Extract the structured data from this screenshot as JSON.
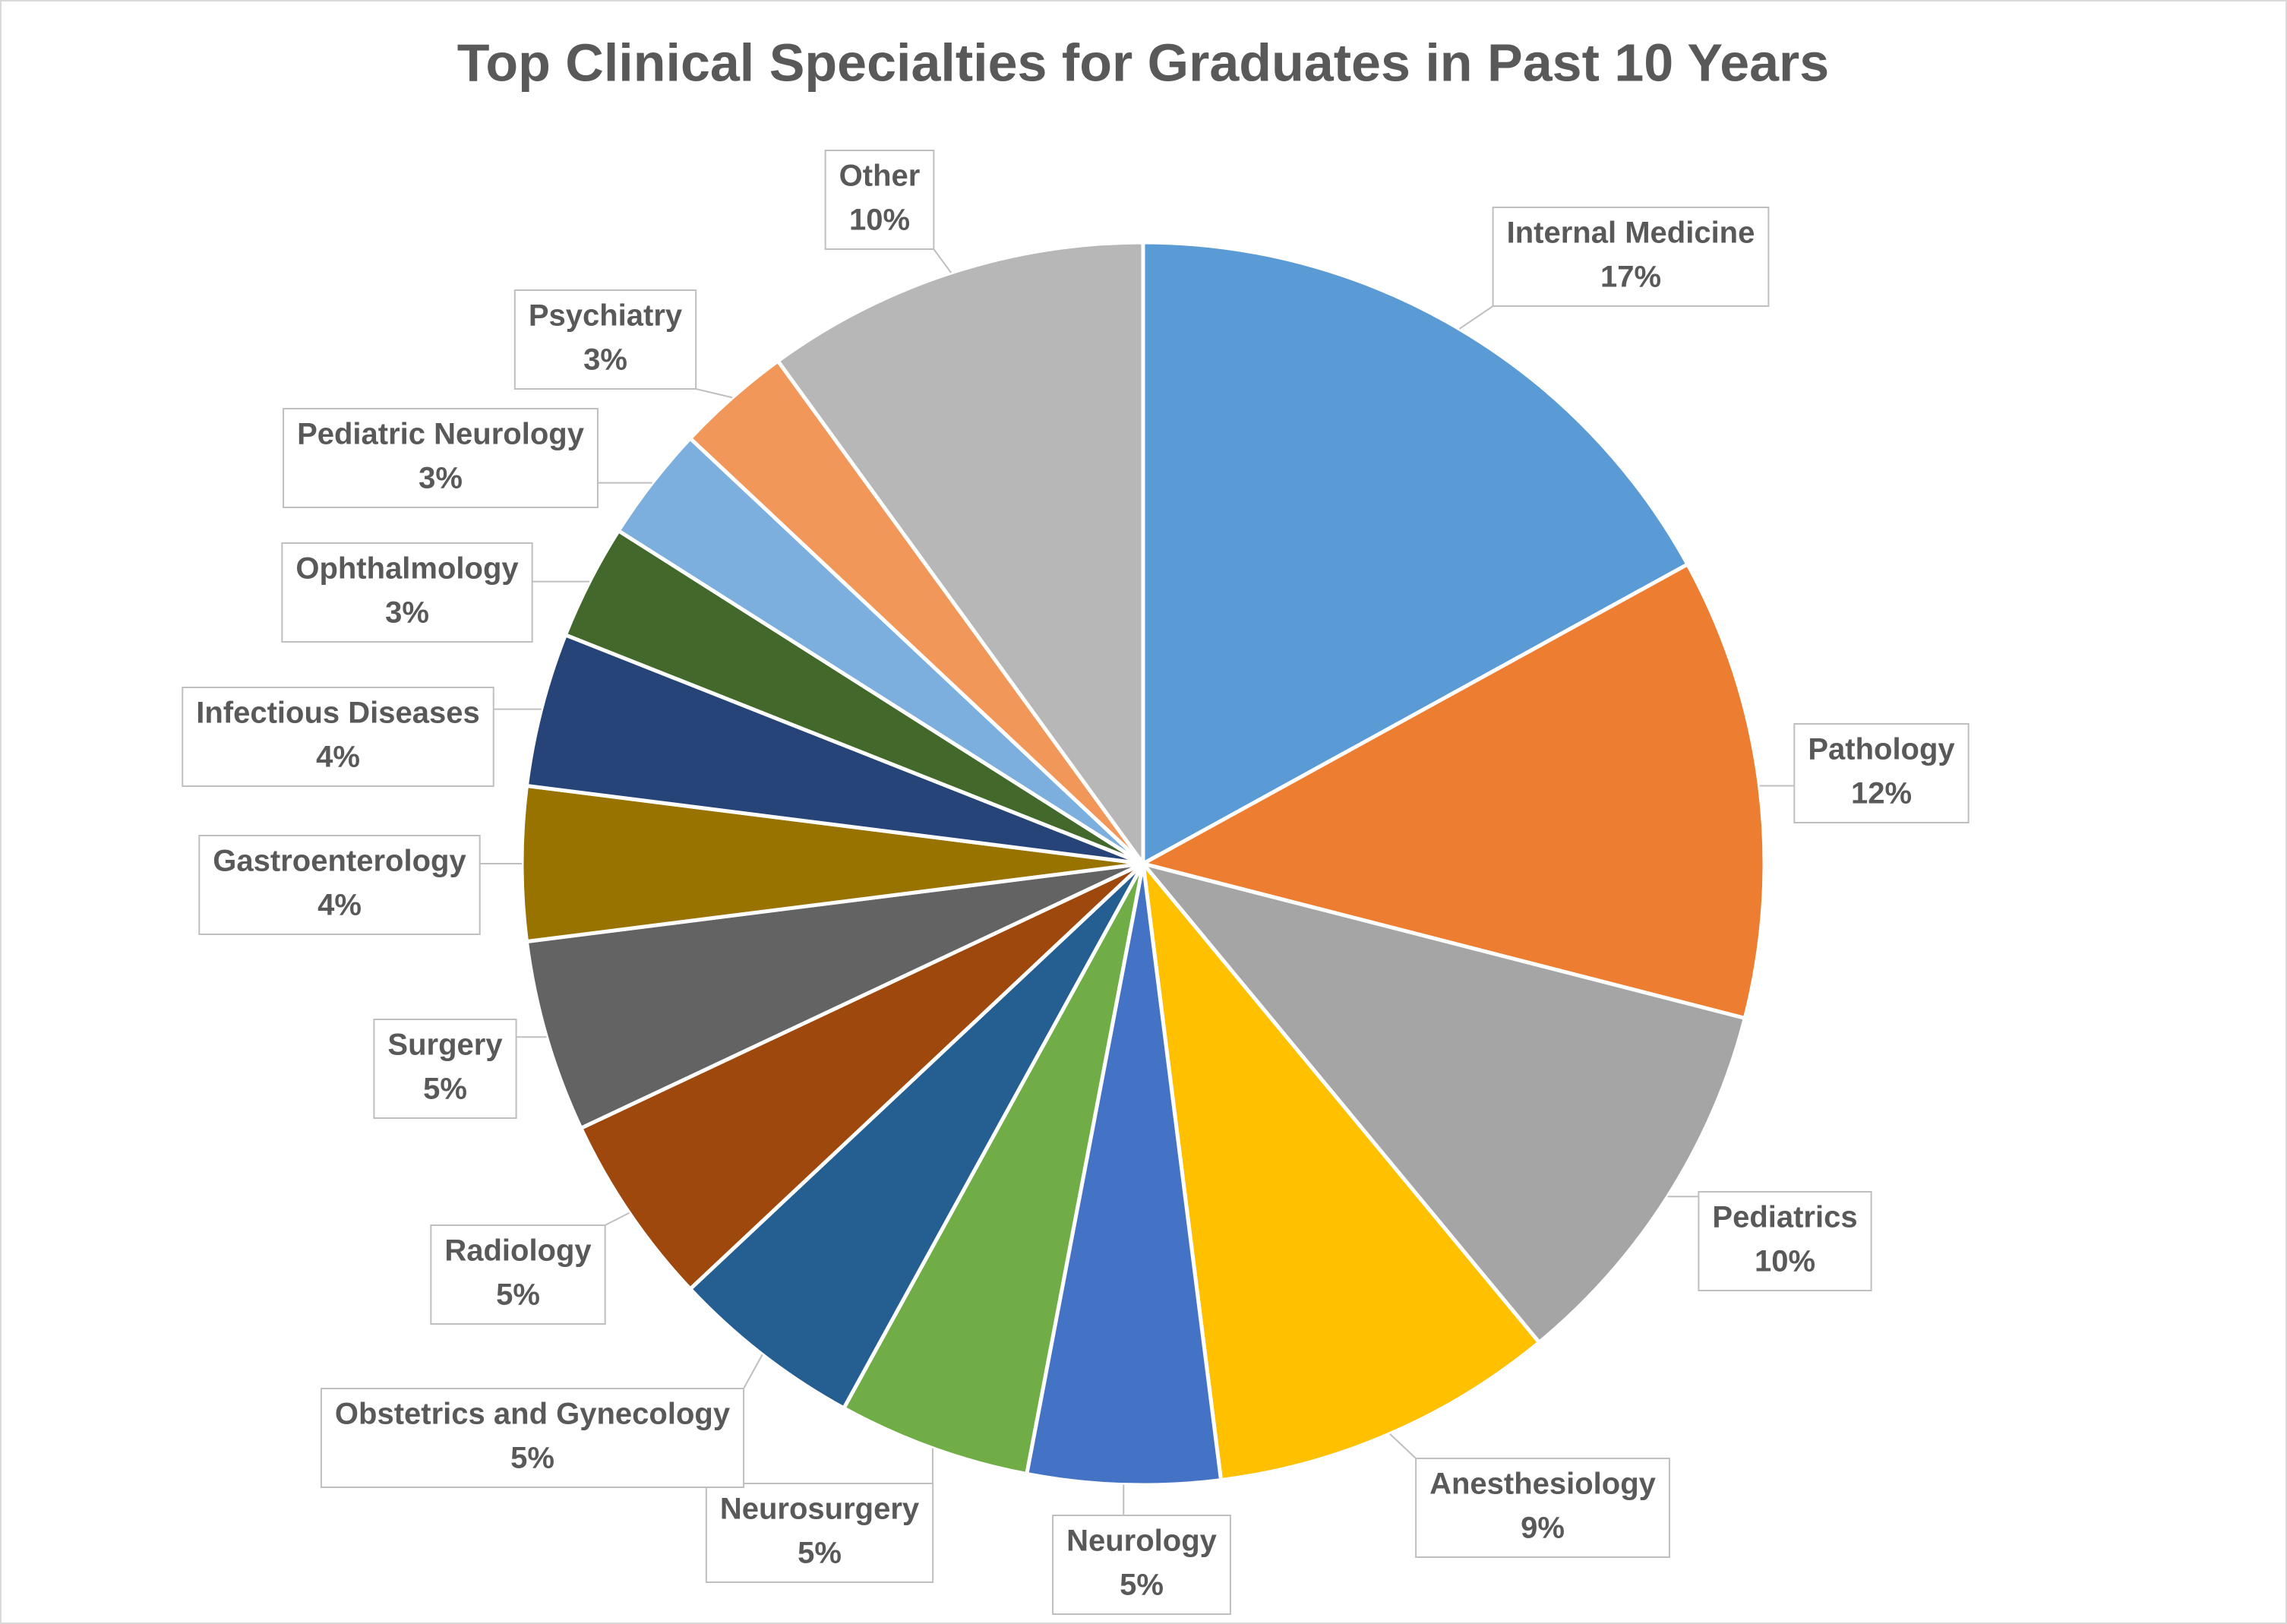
{
  "chart_data": {
    "type": "pie",
    "title": "Top Clinical Specialties for Graduates in Past 10 Years",
    "categories": [
      "Internal Medicine",
      "Pathology",
      "Pediatrics",
      "Anesthesiology",
      "Neurology",
      "Neurosurgery",
      "Obstetrics and Gynecology",
      "Radiology",
      "Surgery",
      "Gastroenterology",
      "Infectious Diseases",
      "Ophthalmology",
      "Pediatric Neurology",
      "Psychiatry",
      "Other"
    ],
    "values": [
      17,
      12,
      10,
      9,
      5,
      5,
      5,
      5,
      5,
      4,
      4,
      3,
      3,
      3,
      10
    ],
    "value_labels": [
      "17%",
      "12%",
      "10%",
      "9%",
      "5%",
      "5%",
      "5%",
      "5%",
      "5%",
      "4%",
      "4%",
      "3%",
      "3%",
      "3%",
      "10%"
    ],
    "colors": [
      "#5b9bd5",
      "#ed7d31",
      "#a5a5a5",
      "#ffc000",
      "#4472c4",
      "#70ad47",
      "#255e91",
      "#9e480e",
      "#636363",
      "#997300",
      "#264478",
      "#43682b",
      "#7cafdd",
      "#f1975a",
      "#b7b7b7"
    ]
  }
}
